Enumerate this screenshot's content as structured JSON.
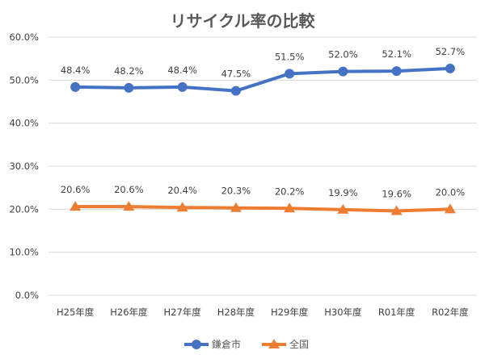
{
  "chart_data": {
    "type": "line",
    "title": "リサイクル率の比較",
    "categories": [
      "H25年度",
      "H26年度",
      "H27年度",
      "H28年度",
      "H29年度",
      "H30年度",
      "R01年度",
      "R02年度"
    ],
    "series": [
      {
        "name": "鎌倉市",
        "color": "#4472C4",
        "marker": "circle",
        "values": [
          48.4,
          48.2,
          48.4,
          47.5,
          51.5,
          52.0,
          52.1,
          52.7
        ],
        "labels": [
          "48.4%",
          "48.2%",
          "48.4%",
          "47.5%",
          "51.5%",
          "52.0%",
          "52.1%",
          "52.7%"
        ]
      },
      {
        "name": "全国",
        "color": "#ED7D31",
        "marker": "triangle",
        "values": [
          20.6,
          20.6,
          20.4,
          20.3,
          20.2,
          19.9,
          19.6,
          20.0
        ],
        "labels": [
          "20.6%",
          "20.6%",
          "20.4%",
          "20.3%",
          "20.2%",
          "19.9%",
          "19.6%",
          "20.0%"
        ]
      }
    ],
    "ylim": [
      0,
      60
    ],
    "yticks": [
      "0.0%",
      "10.0%",
      "20.0%",
      "30.0%",
      "40.0%",
      "50.0%",
      "60.0%"
    ],
    "grid": true,
    "legend": "bottom"
  }
}
